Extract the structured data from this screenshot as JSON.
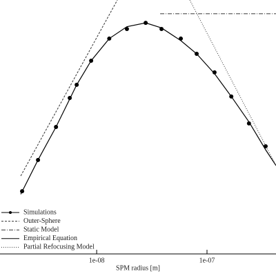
{
  "chart_data": {
    "type": "line",
    "xlabel": "SPM radius [m]",
    "xscale": "log",
    "xlim": [
      1.33e-09,
      4.22e-07
    ],
    "ylim": [
      0,
      100
    ],
    "xticks": [
      {
        "value": 1e-08,
        "label": "1e-08"
      },
      {
        "value": 1e-07,
        "label": "1e-07"
      }
    ],
    "legend": "lower left",
    "series": [
      {
        "name": "Simulations",
        "color": "#000000",
        "marker": "circle",
        "line": false,
        "x": [
          2.11e-09,
          2.94e-09,
          4.28e-09,
          5.7e-09,
          6.59e-09,
          8.91e-09,
          1.3e-08,
          1.88e-08,
          2.78e-08,
          3.87e-08,
          5.79e-08,
          8.06e-08,
          1.17e-07,
          1.66e-07,
          2.4e-07,
          3.4e-07
        ],
        "values": [
          24.7,
          37.0,
          50.0,
          61.4,
          66.6,
          76.1,
          84.8,
          88.6,
          91.0,
          88.6,
          84.8,
          78.8,
          71.5,
          62.0,
          51.4,
          42.4
        ]
      },
      {
        "name": "Outer-Sphere",
        "color": "#333333",
        "dash": "3 2",
        "line": true,
        "x": [
          2.05e-09,
          1.54e-08
        ],
        "values": [
          30.7,
          100
        ]
      },
      {
        "name": "Static Model",
        "color": "#333333",
        "dash": "6 2 1 2",
        "line": true,
        "x": [
          3.76e-08,
          4.22e-07
        ],
        "values": [
          94.6,
          94.6
        ]
      },
      {
        "name": "Empirical Equation",
        "color": "#000000",
        "dash": "",
        "line": true,
        "x": [
          2.05e-09,
          2.94e-09,
          4.28e-09,
          5.7e-09,
          6.59e-09,
          8.91e-09,
          1.3e-08,
          1.88e-08,
          2.78e-08,
          3.87e-08,
          5.79e-08,
          8.06e-08,
          1.17e-07,
          1.66e-07,
          2.4e-07,
          3.4e-07,
          4.22e-07
        ],
        "values": [
          23.5,
          37.0,
          50.0,
          61.0,
          66.6,
          76.1,
          84.8,
          89.5,
          91.0,
          89.0,
          84.0,
          78.8,
          71.0,
          62.0,
          52.0,
          41.0,
          34.8
        ]
      },
      {
        "name": "Partial Refocusing Model",
        "color": "#333333",
        "dash": "1 2",
        "line": true,
        "x": [
          6.98e-08,
          4.22e-07
        ],
        "values": [
          100,
          34.8
        ]
      }
    ]
  }
}
